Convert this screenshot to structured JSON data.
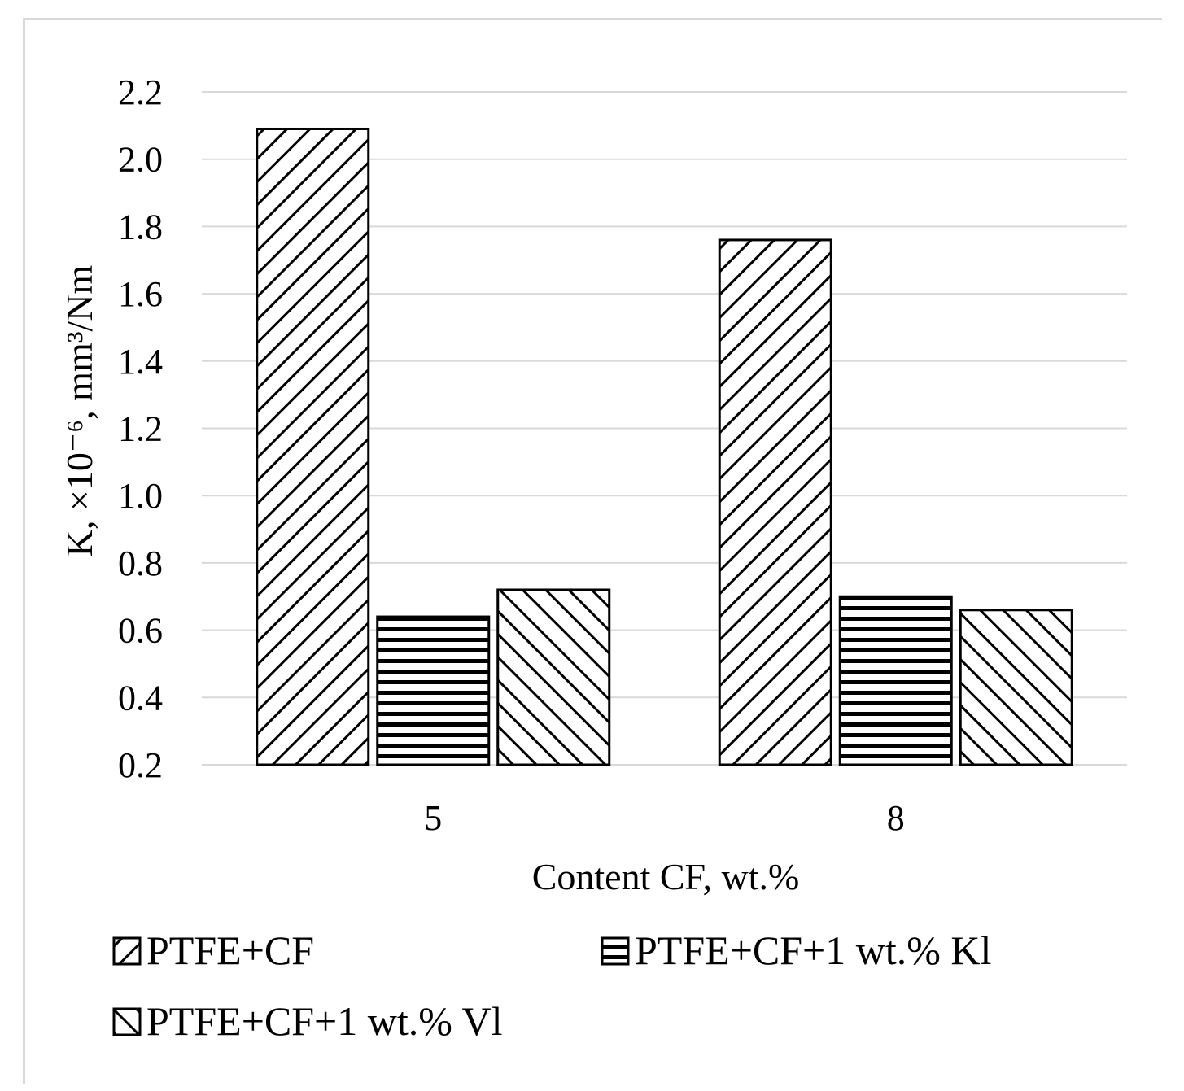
{
  "chart_data": {
    "type": "bar",
    "categories": [
      "5",
      "8"
    ],
    "series": [
      {
        "name": "PTFE+CF",
        "values": [
          2.09,
          1.76
        ],
        "pattern": "diag-down"
      },
      {
        "name": "PTFE+CF+1 wt.% Kl",
        "values": [
          0.64,
          0.7
        ],
        "pattern": "horizontal"
      },
      {
        "name": "PTFE+CF+1 wt.% Vl",
        "values": [
          0.72,
          0.66
        ],
        "pattern": "diag-up"
      }
    ],
    "title": "",
    "xlabel": "Content CF, wt.%",
    "ylabel": "K, ×10⁻⁶, mm³/Nm",
    "ylim": [
      0.2,
      2.2
    ],
    "yticks": [
      "0.2",
      "0.4",
      "0.6",
      "0.8",
      "1.0",
      "1.2",
      "1.4",
      "1.6",
      "1.8",
      "2.0",
      "2.2"
    ],
    "grid": "horizontal",
    "legend_position": "bottom",
    "colors": {
      "bar_fill": "#ffffff",
      "bar_stroke": "#000000",
      "grid": "#d9d9d9"
    }
  }
}
